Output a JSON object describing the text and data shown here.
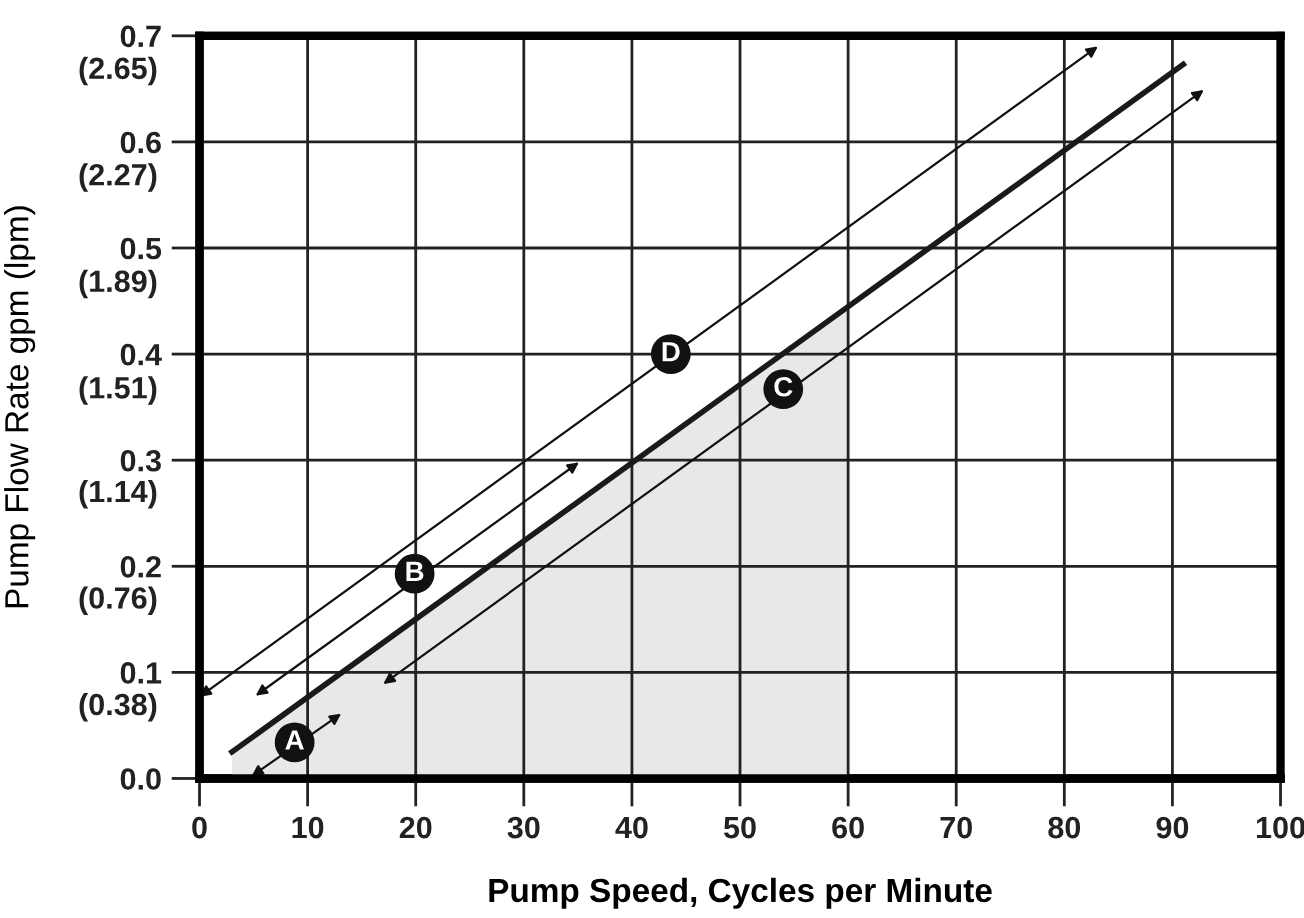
{
  "chart_data": {
    "type": "line",
    "xlabel": "Pump Speed, Cycles per Minute",
    "y2label": "Pump Flow Rate gpm (lpm)",
    "series": [
      {
        "type": "area",
        "color": "#e8e8e8",
        "x": [
          3,
          60
        ],
        "values": [
          0.025,
          0.445
        ]
      },
      {
        "color": "#1a1a1a",
        "x": [
          3,
          91
        ],
        "values": [
          0.025,
          0.673
        ]
      }
    ],
    "xlim": [
      0,
      100
    ],
    "xticks": [
      0,
      10,
      20,
      30,
      40,
      50,
      60,
      70,
      80,
      90,
      100
    ],
    "ylim": [
      0,
      0.7
    ],
    "yticks": [
      {
        "value": 0.0,
        "label": "0.0"
      },
      0.1,
      0.2,
      0.3,
      0.4,
      0.5,
      0.6,
      0.7
    ],
    "y2lim": [
      0,
      2.65
    ],
    "y2ticks": [
      {
        "value": 0.38,
        "label": "(0.38)"
      },
      {
        "value": 0.76,
        "label": "(0.76)"
      },
      {
        "value": 1.14,
        "label": "(1.14)"
      },
      {
        "value": 1.51,
        "label": "(1.51)"
      },
      {
        "value": 1.89,
        "label": "(1.89)"
      },
      {
        "value": 2.27,
        "label": "(2.27)"
      },
      {
        "value": 2.65,
        "label": "(2.65)"
      }
    ],
    "annotations": [
      {
        "text": "A",
        "x": 8.8,
        "y": 0.034
      },
      {
        "text": "B",
        "x": 19.9,
        "y": 0.193
      },
      {
        "text": "D",
        "x": 43.6,
        "y": 0.4
      },
      {
        "text": "C",
        "x": 54,
        "y": 0.367
      }
    ],
    "grid": true,
    "line_style": "solid",
    "marker": "none",
    "legend": false
  }
}
